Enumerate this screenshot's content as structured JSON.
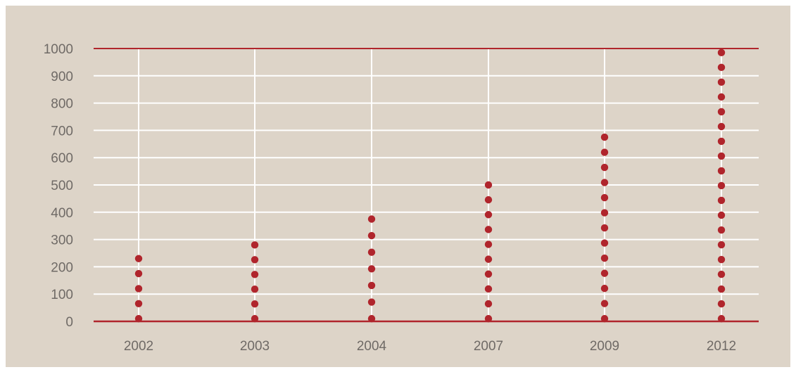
{
  "chart_data": {
    "type": "scatter",
    "title": "",
    "xlabel": "",
    "ylabel": "",
    "ylim": [
      0,
      1000
    ],
    "y_ticks": [
      "0",
      "100",
      "200",
      "300",
      "400",
      "500",
      "600",
      "700",
      "800",
      "900",
      "1000"
    ],
    "grid": true,
    "categories": [
      "2002",
      "2003",
      "2004",
      "2007",
      "2009",
      "2012"
    ],
    "values": [
      230,
      280,
      375,
      500,
      675,
      985
    ],
    "dot_counts": [
      5,
      6,
      7,
      10,
      13,
      19
    ],
    "colors": {
      "background": "#ddd4c8",
      "grid": "#ffffff",
      "reference_lines": "#b0252c",
      "dots": "#b0252c",
      "text": "#6f6a66"
    }
  }
}
